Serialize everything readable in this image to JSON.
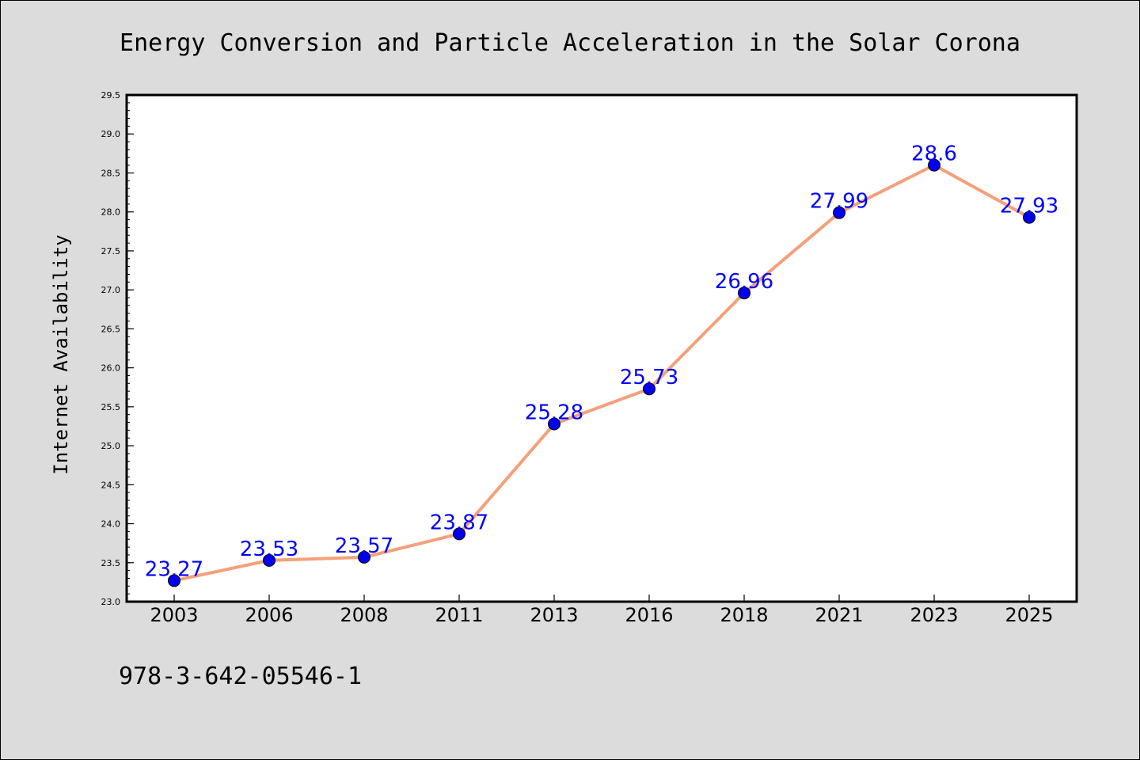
{
  "chart_data": {
    "type": "line",
    "title": "Energy Conversion and Particle Acceleration in the Solar Corona",
    "xlabel": "",
    "ylabel": "Internet Availability",
    "categories": [
      "2003",
      "2006",
      "2008",
      "2011",
      "2013",
      "2016",
      "2018",
      "2021",
      "2023",
      "2025"
    ],
    "values": [
      23.27,
      23.53,
      23.57,
      23.87,
      25.28,
      25.73,
      26.96,
      27.99,
      28.6,
      27.93
    ],
    "data_labels": [
      "23.27",
      "23.53",
      "23.57",
      "23.87",
      "25.28",
      "25.73",
      "26.96",
      "27.99",
      "28.6",
      "27.93"
    ],
    "ylim": [
      23.0,
      29.5
    ],
    "yticks": [
      "23.0",
      "23.5",
      "24.0",
      "24.5",
      "25.0",
      "25.5",
      "26.0",
      "26.5",
      "27.0",
      "27.5",
      "28.0",
      "28.5",
      "29.0",
      "29.5"
    ],
    "grid": false,
    "line_color": "#f4a07a",
    "marker_color": "#0000ee",
    "label_color": "#0000ff",
    "background_color": "#dcdcdc",
    "plot_background": "#ffffff"
  },
  "footer_text": "978-3-642-05546-1"
}
